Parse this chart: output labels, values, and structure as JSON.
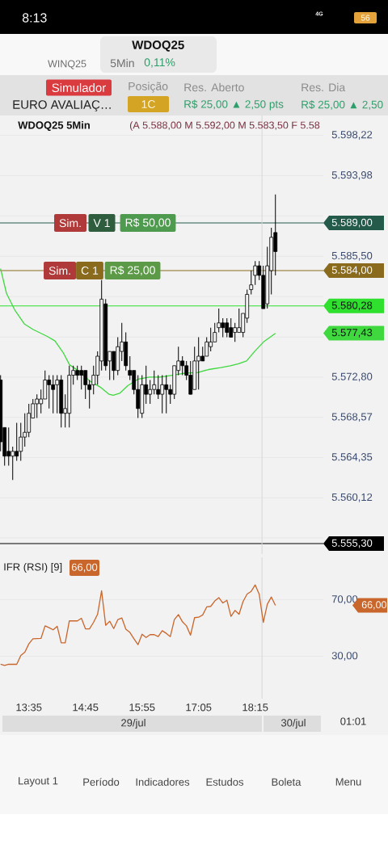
{
  "chart_data": [
    {
      "type": "candlestick",
      "title": "WDOQ25 5Min",
      "subtitle": "(A 5.588,00 M 5.592,00 M 5.583,50 F 5.58",
      "color": "#000000",
      "x": [
        13.0,
        13.083,
        13.167,
        13.25,
        13.333,
        13.417,
        13.5,
        13.583,
        13.667,
        13.75,
        13.833,
        13.917,
        14.0,
        14.083,
        14.167,
        14.25,
        14.333,
        14.417,
        14.5,
        14.583,
        14.667,
        14.75,
        14.833,
        14.917,
        15.0,
        15.083,
        15.167,
        15.25,
        15.333,
        15.417,
        15.5,
        15.583,
        15.667,
        15.75,
        15.833,
        15.917,
        16.0,
        16.083,
        16.167,
        16.25,
        16.333,
        16.417,
        16.5,
        16.583,
        16.667,
        16.75,
        16.833,
        16.917,
        17.0,
        17.083,
        17.167,
        17.25,
        17.333,
        17.417,
        17.5,
        17.583,
        17.667,
        17.75,
        17.833,
        17.917,
        18.0,
        18.083,
        18.167,
        18.25,
        18.333,
        18.417,
        18.5,
        18.583,
        18.667
      ],
      "ohlc": [
        [
          5572.5,
          5573.0,
          5565.0,
          5566.0
        ],
        [
          5567.5,
          5567.5,
          5563.5,
          5564.5
        ],
        [
          5565.0,
          5567.5,
          5563.5,
          5564.5
        ],
        [
          5564.5,
          5565.5,
          5562.0,
          5565.0
        ],
        [
          5565.0,
          5568.0,
          5564.0,
          5564.5
        ],
        [
          5565.0,
          5568.0,
          5564.0,
          5566.5
        ],
        [
          5566.5,
          5569.0,
          5565.5,
          5567.0
        ],
        [
          5567.0,
          5570.0,
          5566.5,
          5569.0
        ],
        [
          5568.5,
          5570.5,
          5568.5,
          5570.0
        ],
        [
          5570.0,
          5571.0,
          5568.5,
          5570.5
        ],
        [
          5570.0,
          5571.5,
          5569.0,
          5570.5
        ],
        [
          5570.5,
          5573.5,
          5570.5,
          5572.5
        ],
        [
          5572.5,
          5573.0,
          5569.5,
          5572.0
        ],
        [
          5572.0,
          5573.0,
          5569.0,
          5571.5
        ],
        [
          5572.0,
          5573.0,
          5569.0,
          5572.5
        ],
        [
          5572.5,
          5573.0,
          5567.5,
          5569.0
        ],
        [
          5569.0,
          5571.0,
          5567.5,
          5569.5
        ],
        [
          5569.0,
          5574.0,
          5567.5,
          5573.0
        ],
        [
          5573.0,
          5574.0,
          5572.0,
          5573.5
        ],
        [
          5573.5,
          5574.0,
          5572.5,
          5573.0
        ],
        [
          5573.5,
          5574.0,
          5571.5,
          5573.0
        ],
        [
          5573.5,
          5573.5,
          5570.5,
          5572.0
        ],
        [
          5572.0,
          5572.5,
          5569.5,
          5571.5
        ],
        [
          5572.0,
          5574.0,
          5571.0,
          5573.0
        ],
        [
          5573.0,
          5575.5,
          5572.0,
          5575.0
        ],
        [
          5574.5,
          5583.0,
          5573.5,
          5581.0
        ],
        [
          5580.5,
          5581.0,
          5573.5,
          5574.0
        ],
        [
          5574.5,
          5575.5,
          5572.5,
          5575.5
        ],
        [
          5575.5,
          5575.5,
          5572.5,
          5573.5
        ],
        [
          5573.5,
          5577.0,
          5573.0,
          5576.0
        ],
        [
          5575.5,
          5578.5,
          5574.5,
          5576.5
        ],
        [
          5576.5,
          5577.5,
          5573.5,
          5574.0
        ],
        [
          5573.5,
          5575.0,
          5572.5,
          5573.0
        ],
        [
          5573.5,
          5573.5,
          5571.0,
          5571.5
        ],
        [
          5571.5,
          5573.0,
          5568.5,
          5569.5
        ],
        [
          5569.0,
          5573.0,
          5568.5,
          5572.0
        ],
        [
          5572.0,
          5574.0,
          5570.0,
          5571.0
        ],
        [
          5571.0,
          5572.5,
          5570.0,
          5571.5
        ],
        [
          5571.5,
          5573.5,
          5571.0,
          5572.0
        ],
        [
          5571.5,
          5573.0,
          5570.5,
          5571.0
        ],
        [
          5571.0,
          5573.0,
          5569.0,
          5572.0
        ],
        [
          5572.0,
          5573.0,
          5569.0,
          5571.5
        ],
        [
          5571.5,
          5572.0,
          5570.0,
          5571.0
        ],
        [
          5571.0,
          5574.0,
          5570.5,
          5574.0
        ],
        [
          5573.5,
          5576.0,
          5573.0,
          5574.5
        ],
        [
          5574.5,
          5575.0,
          5573.0,
          5574.0
        ],
        [
          5574.0,
          5574.5,
          5572.5,
          5573.0
        ],
        [
          5573.0,
          5574.5,
          5571.0,
          5571.0
        ],
        [
          5571.5,
          5576.0,
          5571.5,
          5574.5
        ],
        [
          5574.5,
          5577.0,
          5571.5,
          5575.0
        ],
        [
          5575.0,
          5576.0,
          5574.5,
          5574.5
        ],
        [
          5575.0,
          5577.0,
          5575.0,
          5576.5
        ],
        [
          5576.0,
          5578.0,
          5575.5,
          5576.5
        ],
        [
          5576.5,
          5578.5,
          5576.5,
          5577.5
        ],
        [
          5578.0,
          5580.0,
          5577.5,
          5578.5
        ],
        [
          5578.5,
          5579.0,
          5577.0,
          5578.0
        ],
        [
          5578.5,
          5579.0,
          5577.0,
          5577.5
        ],
        [
          5578.0,
          5579.0,
          5577.0,
          5577.0
        ],
        [
          5577.5,
          5578.5,
          5576.5,
          5578.0
        ],
        [
          5577.5,
          5580.0,
          5577.5,
          5578.0
        ],
        [
          5577.5,
          5579.5,
          5577.0,
          5579.5
        ],
        [
          5579.0,
          5582.0,
          5578.5,
          5581.5
        ],
        [
          5582.0,
          5584.0,
          5581.5,
          5582.5
        ],
        [
          5583.5,
          5585.0,
          5582.5,
          5584.5
        ],
        [
          5584.5,
          5585.0,
          5583.0,
          5583.5
        ],
        [
          5583.5,
          5584.5,
          5580.0,
          5580.0
        ],
        [
          5580.5,
          5586.5,
          5580.0,
          5584.5
        ],
        [
          5584.0,
          5588.5,
          5581.5,
          5587.5
        ],
        [
          5588.0,
          5592.0,
          5583.5,
          5586.0
        ]
      ],
      "series": [
        {
          "type": "line",
          "color": "#3fd83f",
          "x": [
            13.0,
            13.122,
            13.288,
            13.488,
            13.672,
            13.955,
            14.122,
            14.288,
            14.422,
            14.622,
            14.838,
            15.072,
            15.238,
            15.322,
            15.455,
            15.622,
            15.838,
            16.072,
            16.288,
            16.538,
            16.788,
            17.072,
            17.288,
            17.538,
            17.738,
            17.905,
            18.072,
            18.238,
            18.422,
            18.667
          ],
          "values": [
            5584.2,
            5581.6,
            5579.9,
            5578.4,
            5577.8,
            5577.1,
            5576.6,
            5575.4,
            5574.1,
            5573.4,
            5572.4,
            5571.7,
            5571.0,
            5570.9,
            5571.1,
            5571.9,
            5572.6,
            5572.8,
            5572.8,
            5573.0,
            5573.2,
            5573.3,
            5573.6,
            5573.8,
            5574.0,
            5574.2,
            5574.5,
            5575.5,
            5576.5,
            5577.4
          ]
        }
      ],
      "xlim": [
        12.988,
        19.655
      ],
      "ylim": [
        5554.2,
        5600.3
      ],
      "yticks": [
        {
          "value": 5598.22,
          "label": "5.598,22"
        },
        {
          "value": 5593.98,
          "label": "5.593,98"
        },
        {
          "value": 5589.74,
          "label": null
        },
        {
          "value": 5585.5,
          "label": "5.585,50"
        },
        {
          "value": 5581.26,
          "label": null
        },
        {
          "value": 5577.02,
          "label": null
        },
        {
          "value": 5572.8,
          "label": "5.572,80"
        },
        {
          "value": 5568.57,
          "label": "5.568,57"
        },
        {
          "value": 5564.35,
          "label": "5.564,35"
        },
        {
          "value": 5560.12,
          "label": "5.560,12"
        },
        {
          "value": 5555.91,
          "label": null
        }
      ],
      "tick_labels": "y",
      "grid": "y",
      "ref_lines": [
        {
          "axis": "y",
          "value": 5589.0,
          "label": "5.589,00",
          "color": "#245a4a"
        },
        {
          "axis": "y",
          "value": 5584.0,
          "label": "5.584,00",
          "color": "#8a6a1c"
        },
        {
          "axis": "y",
          "value": 5580.28,
          "label": "5.580,28",
          "color": "#2fe02f"
        },
        {
          "axis": "y",
          "value": 5555.3,
          "label": "5.555,30",
          "color": "#000000"
        },
        {
          "axis": "x",
          "value": 18.39,
          "color": "#d6d6d6"
        }
      ],
      "annotations": [
        {
          "text": "Sim.",
          "x": 14.438,
          "y": 5589.0
        },
        {
          "text": "V 1",
          "x": 15.088,
          "y": 5589.0
        },
        {
          "text": "R$ 50,00",
          "x": 16.038,
          "y": 5589.0
        },
        {
          "text": "Sim.",
          "x": 14.222,
          "y": 5584.0
        },
        {
          "text": "C 1",
          "x": 14.838,
          "y": 5584.0
        },
        {
          "text": "R$ 25,00",
          "x": 15.722,
          "y": 5584.0
        },
        "5.577,43",
        "8:13",
        "4G",
        "56",
        "WINQ25",
        "WDOQ25",
        "5Min",
        "0,11%",
        "Simulador",
        "EURO AVALIAÇ…",
        "Posição",
        "1C",
        "Res. Aberto",
        "R$ 25,00 ▲ 2,50 pts",
        "Res. Dia",
        "R$ 25,00 ▲ 2,50",
        "Layout 1",
        "Período",
        "Indicadores",
        "Estudos",
        "Boleta",
        "Menu"
      ]
    },
    {
      "type": "line",
      "title": "IFR (RSI) [9]",
      "x": [
        13.0,
        13.083,
        13.167,
        13.25,
        13.333,
        13.417,
        13.5,
        13.583,
        13.667,
        13.75,
        13.833,
        13.917,
        14.0,
        14.083,
        14.167,
        14.25,
        14.333,
        14.417,
        14.5,
        14.583,
        14.667,
        14.75,
        14.833,
        14.917,
        15.0,
        15.083,
        15.167,
        15.25,
        15.333,
        15.417,
        15.5,
        15.583,
        15.667,
        15.75,
        15.833,
        15.917,
        16.0,
        16.083,
        16.167,
        16.25,
        16.333,
        16.417,
        16.5,
        16.583,
        16.667,
        16.75,
        16.833,
        16.917,
        17.0,
        17.083,
        17.167,
        17.25,
        17.333,
        17.417,
        17.5,
        17.583,
        17.667,
        17.75,
        17.833,
        17.917,
        18.0,
        18.083,
        18.167,
        18.25,
        18.333,
        18.417,
        18.5,
        18.583,
        18.667
      ],
      "series": [
        {
          "color": "#c9662c",
          "values": [
            24.3,
            23.5,
            24.3,
            24.3,
            24.3,
            30.6,
            32.9,
            38.8,
            42.4,
            42.5,
            42.6,
            51.5,
            50.2,
            48.7,
            51.2,
            39.5,
            39.5,
            55.0,
            55.0,
            55.0,
            56.9,
            49.4,
            49.4,
            54.0,
            59.7,
            76.3,
            51.9,
            54.8,
            49.6,
            55.9,
            57.1,
            49.2,
            46.8,
            42.4,
            38.2,
            45.6,
            43.3,
            45.3,
            45.3,
            43.9,
            48.1,
            46.2,
            43.9,
            55.9,
            59.5,
            54.4,
            51.5,
            44.9,
            57.3,
            57.6,
            59.2,
            64.9,
            65.3,
            69.1,
            71.5,
            67.7,
            69.6,
            58.2,
            62.4,
            59.7,
            68.7,
            74.0,
            75.9,
            80.5,
            73.8,
            54.0,
            66.8,
            71.9,
            66.0
          ]
        }
      ],
      "xlim": [
        12.988,
        19.655
      ],
      "ylim": [
        0,
        100
      ],
      "xticks": [
        {
          "value": 13.583,
          "label": "13:35"
        },
        {
          "value": 14.75,
          "label": "14:45"
        },
        {
          "value": 15.917,
          "label": "15:55"
        },
        {
          "value": 17.083,
          "label": "17:05"
        },
        {
          "value": 18.25,
          "label": "18:15"
        }
      ],
      "yticks": [
        {
          "value": 70,
          "label": "70,00"
        },
        {
          "value": 30,
          "label": "30,00"
        }
      ],
      "grid": "y",
      "ref_lines": [
        {
          "axis": "x",
          "value": 18.39,
          "color": "#d6d6d6"
        }
      ],
      "annotations": [
        "66,00",
        "66,00",
        "29/jul",
        "30/jul",
        "01:01"
      ]
    }
  ]
}
